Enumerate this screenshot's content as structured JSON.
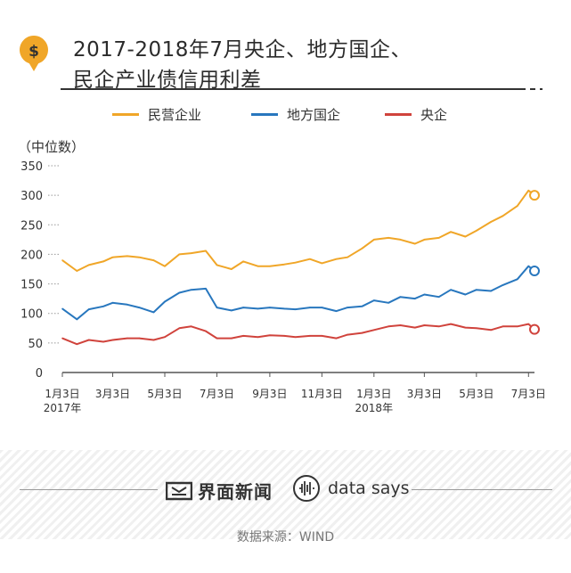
{
  "header": {
    "title_line1": "2017-2018年7月央企、地方国企、",
    "title_line2": "民企产业债信用利差",
    "icon": "dollar-coin-icon",
    "icon_color": "#f0a628"
  },
  "legend": [
    {
      "label": "民营企业",
      "color": "#f0a628"
    },
    {
      "label": "地方国企",
      "color": "#2877be"
    },
    {
      "label": "央企",
      "color": "#d0433c"
    }
  ],
  "footer": {
    "brand1": "界面新闻",
    "brand2": "data says",
    "source": "数据来源：WIND"
  },
  "chart_data": {
    "type": "line",
    "ylabel": "（中位数）",
    "ylim": [
      0,
      350
    ],
    "yticks": [
      0,
      50,
      100,
      150,
      200,
      250,
      300,
      350
    ],
    "x_ticks": [
      {
        "label": "1月3日",
        "sub": "2017年",
        "x": "2017-01-03"
      },
      {
        "label": "3月3日",
        "sub": "",
        "x": "2017-03-03"
      },
      {
        "label": "5月3日",
        "sub": "",
        "x": "2017-05-03"
      },
      {
        "label": "7月3日",
        "sub": "",
        "x": "2017-07-03"
      },
      {
        "label": "9月3日",
        "sub": "",
        "x": "2017-09-03"
      },
      {
        "label": "11月3日",
        "sub": "",
        "x": "2017-11-03"
      },
      {
        "label": "1月3日",
        "sub": "2018年",
        "x": "2018-01-03"
      },
      {
        "label": "3月3日",
        "sub": "",
        "x": "2018-03-03"
      },
      {
        "label": "5月3日",
        "sub": "",
        "x": "2018-05-03"
      },
      {
        "label": "7月3日",
        "sub": "",
        "x": "2018-07-03"
      }
    ],
    "x": [
      "2017-01-03",
      "2017-01-20",
      "2017-02-03",
      "2017-02-20",
      "2017-03-03",
      "2017-03-20",
      "2017-04-03",
      "2017-04-20",
      "2017-05-03",
      "2017-05-20",
      "2017-06-03",
      "2017-06-20",
      "2017-07-03",
      "2017-07-20",
      "2017-08-03",
      "2017-08-20",
      "2017-09-03",
      "2017-09-20",
      "2017-10-03",
      "2017-10-20",
      "2017-11-03",
      "2017-11-20",
      "2017-12-03",
      "2017-12-20",
      "2018-01-03",
      "2018-01-20",
      "2018-02-03",
      "2018-02-20",
      "2018-03-03",
      "2018-03-20",
      "2018-04-03",
      "2018-04-20",
      "2018-05-03",
      "2018-05-20",
      "2018-06-03",
      "2018-06-20",
      "2018-07-03",
      "2018-07-10"
    ],
    "series": [
      {
        "name": "民营企业",
        "color": "#f0a628",
        "values": [
          190,
          172,
          182,
          188,
          195,
          197,
          195,
          190,
          180,
          200,
          202,
          206,
          182,
          175,
          188,
          180,
          180,
          183,
          186,
          192,
          185,
          192,
          195,
          210,
          225,
          228,
          225,
          218,
          225,
          228,
          238,
          230,
          240,
          255,
          265,
          282,
          308,
          300
        ]
      },
      {
        "name": "地方国企",
        "color": "#2877be",
        "values": [
          108,
          90,
          107,
          112,
          118,
          115,
          110,
          102,
          120,
          135,
          140,
          142,
          110,
          105,
          110,
          108,
          110,
          108,
          107,
          110,
          110,
          104,
          110,
          112,
          122,
          118,
          128,
          125,
          132,
          128,
          140,
          132,
          140,
          138,
          148,
          158,
          180,
          172
        ]
      },
      {
        "name": "央企",
        "color": "#d0433c",
        "values": [
          58,
          48,
          55,
          52,
          55,
          58,
          58,
          55,
          60,
          75,
          78,
          70,
          58,
          58,
          62,
          60,
          63,
          62,
          60,
          62,
          62,
          58,
          64,
          67,
          72,
          78,
          80,
          76,
          80,
          78,
          82,
          76,
          75,
          72,
          78,
          78,
          82,
          73
        ]
      }
    ]
  }
}
